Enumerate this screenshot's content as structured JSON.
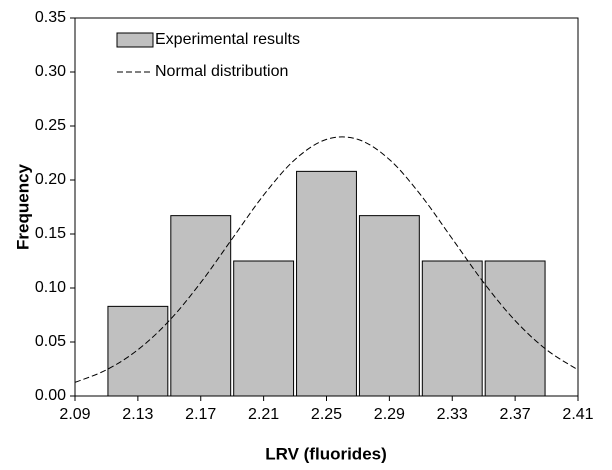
{
  "chart_data": {
    "type": "histogram",
    "x_label": "LRV (fluorides)",
    "y_label": "Frequency",
    "bins": [
      2.11,
      2.15,
      2.19,
      2.23,
      2.27,
      2.31,
      2.35,
      2.39
    ],
    "series": [
      {
        "name": "Experimental results",
        "type": "histogram",
        "color": "#c0c0c0",
        "values": [
          0.083,
          0.167,
          0.125,
          0.208,
          0.167,
          0.125,
          0.125
        ]
      },
      {
        "name": "Normal distribution",
        "type": "line",
        "color": "#000000",
        "dashed": true,
        "x": [
          2.09,
          2.11,
          2.13,
          2.15,
          2.17,
          2.19,
          2.21,
          2.23,
          2.25,
          2.27,
          2.29,
          2.31,
          2.33,
          2.35,
          2.37,
          2.39,
          2.41
        ],
        "values": [
          0.0126,
          0.0242,
          0.0428,
          0.0698,
          0.105,
          0.1456,
          0.186,
          0.219,
          0.2376,
          0.2376,
          0.219,
          0.186,
          0.1456,
          0.105,
          0.0698,
          0.0428,
          0.0242
        ]
      }
    ],
    "xlim": [
      2.09,
      2.41
    ],
    "xticks": [
      2.09,
      2.13,
      2.17,
      2.21,
      2.25,
      2.29,
      2.33,
      2.37,
      2.41
    ],
    "ylim": [
      0,
      0.35
    ],
    "yticks": [
      {
        "value": 0,
        "label": "0.00"
      },
      {
        "value": 0.05,
        "label": "0.05"
      },
      {
        "value": 0.1,
        "label": "0.10"
      },
      {
        "value": 0.15,
        "label": "0.15"
      },
      {
        "value": 0.2,
        "label": "0.20"
      },
      {
        "value": 0.25,
        "label": "0.25"
      },
      {
        "value": 0.3,
        "label": "0.30"
      },
      {
        "value": 0.35,
        "label": "0.35"
      }
    ],
    "grid": false,
    "legend": "upper left"
  }
}
